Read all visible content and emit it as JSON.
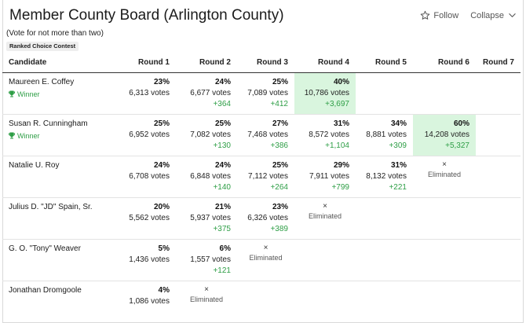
{
  "header": {
    "title": "Member County Board (Arlington County)",
    "follow_label": "Follow",
    "collapse_label": "Collapse"
  },
  "subtitle": "(Vote for not more than two)",
  "badge": "Ranked Choice Contest",
  "table": {
    "candidate_header": "Candidate",
    "rounds": [
      "Round 1",
      "Round 2",
      "Round 3",
      "Round 4",
      "Round 5",
      "Round 6",
      "Round 7"
    ],
    "winner_label": "Winner",
    "eliminated_label": "Eliminated",
    "rows": [
      {
        "name": "Maureen E. Coffey",
        "cells": [
          {
            "pct": "23%",
            "votes": "6,313 votes"
          },
          {
            "pct": "24%",
            "votes": "6,677 votes",
            "delta": "+364"
          },
          {
            "pct": "25%",
            "votes": "7,089 votes",
            "delta": "+412"
          },
          {
            "pct": "40%",
            "votes": "10,786 votes",
            "delta": "+3,697"
          },
          {},
          {},
          {}
        ]
      },
      {
        "name": "Susan R. Cunningham",
        "cells": [
          {
            "pct": "25%",
            "votes": "6,952 votes"
          },
          {
            "pct": "25%",
            "votes": "7,082 votes",
            "delta": "+130"
          },
          {
            "pct": "27%",
            "votes": "7,468 votes",
            "delta": "+386"
          },
          {
            "pct": "31%",
            "votes": "8,572 votes",
            "delta": "+1,104"
          },
          {
            "pct": "34%",
            "votes": "8,881 votes",
            "delta": "+309"
          },
          {
            "pct": "60%",
            "votes": "14,208 votes",
            "delta": "+5,327"
          },
          {}
        ]
      },
      {
        "name": "Natalie U. Roy",
        "cells": [
          {
            "pct": "24%",
            "votes": "6,708 votes"
          },
          {
            "pct": "24%",
            "votes": "6,848 votes",
            "delta": "+140"
          },
          {
            "pct": "25%",
            "votes": "7,112 votes",
            "delta": "+264"
          },
          {
            "pct": "29%",
            "votes": "7,911 votes",
            "delta": "+799"
          },
          {
            "pct": "31%",
            "votes": "8,132 votes",
            "delta": "+221"
          },
          {},
          {}
        ]
      },
      {
        "name": "Julius D. \"JD\" Spain, Sr.",
        "cells": [
          {
            "pct": "20%",
            "votes": "5,562 votes"
          },
          {
            "pct": "21%",
            "votes": "5,937 votes",
            "delta": "+375"
          },
          {
            "pct": "23%",
            "votes": "6,326 votes",
            "delta": "+389"
          },
          {},
          {},
          {},
          {}
        ]
      },
      {
        "name": "G. O. \"Tony\" Weaver",
        "cells": [
          {
            "pct": "5%",
            "votes": "1,436 votes"
          },
          {
            "pct": "6%",
            "votes": "1,557 votes",
            "delta": "+121"
          },
          {},
          {},
          {},
          {},
          {}
        ]
      },
      {
        "name": "Jonathan Dromgoole",
        "cells": [
          {
            "pct": "4%",
            "votes": "1,086 votes"
          },
          {},
          {},
          {},
          {},
          {},
          {}
        ]
      }
    ]
  }
}
